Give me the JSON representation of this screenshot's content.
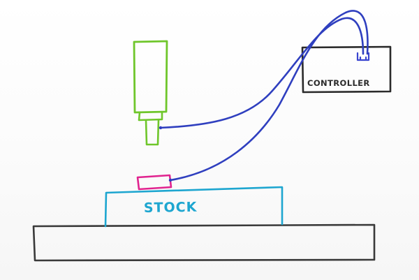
{
  "labels": {
    "controller": "CONTROLLER",
    "stock": "STOCK"
  },
  "colors": {
    "spindle": "#6fc62b",
    "wire": "#2f3fbf",
    "contact_plate": "#e0238f",
    "stock": "#1ea6d0",
    "table": "#3a3a3a",
    "controller_box": "#2b2b2b",
    "connector": "#3a45d0"
  }
}
